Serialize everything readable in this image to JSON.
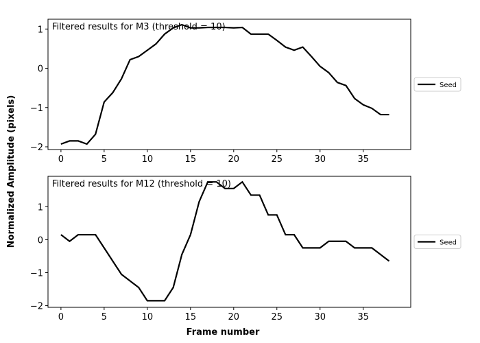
{
  "chart_data": {
    "type": "line",
    "xlabel": "Frame number",
    "ylabel": "Normalized Amplitude (pixels)",
    "xlim": [
      -1.5,
      40.5
    ],
    "xticks": [
      0,
      5,
      10,
      15,
      20,
      25,
      30,
      35
    ],
    "grid": false,
    "legend": "right",
    "line_color": "#000000",
    "panels": [
      {
        "title": "Filtered results for M3 (threshold = 10)",
        "ylim": [
          -2.07,
          1.25
        ],
        "yticks": [
          -2,
          -1,
          0,
          1
        ],
        "series": [
          {
            "name": "Seed",
            "x": [
              0,
              1,
              2,
              3,
              4,
              5,
              6,
              7,
              8,
              9,
              10,
              11,
              12,
              13,
              14,
              15,
              16,
              17,
              18,
              19,
              20,
              21,
              22,
              23,
              24,
              25,
              26,
              27,
              28,
              29,
              30,
              31,
              32,
              33,
              34,
              35,
              36,
              37,
              38
            ],
            "values": [
              -1.93,
              -1.85,
              -1.85,
              -1.93,
              -1.68,
              -0.86,
              -0.62,
              -0.27,
              0.22,
              0.3,
              0.46,
              0.62,
              0.87,
              1.03,
              1.11,
              1.03,
              1.03,
              1.04,
              1.04,
              1.04,
              1.03,
              1.04,
              0.87,
              0.87,
              0.87,
              0.71,
              0.54,
              0.46,
              0.54,
              0.3,
              0.05,
              -0.11,
              -0.36,
              -0.44,
              -0.77,
              -0.93,
              -1.02,
              -1.18,
              -1.18
            ]
          }
        ]
      },
      {
        "title": "Filtered results for M12 (threshold = 10)",
        "ylim": [
          -2.05,
          1.92
        ],
        "yticks": [
          -2,
          -1,
          0,
          1
        ],
        "series": [
          {
            "name": "Seed",
            "x": [
              0,
              1,
              2,
              3,
              4,
              5,
              6,
              7,
              8,
              9,
              10,
              11,
              12,
              13,
              14,
              15,
              16,
              17,
              18,
              19,
              20,
              21,
              22,
              23,
              24,
              25,
              26,
              27,
              28,
              29,
              30,
              31,
              32,
              33,
              34,
              35,
              36,
              37,
              38
            ],
            "values": [
              0.15,
              -0.05,
              0.15,
              0.15,
              0.15,
              -0.25,
              -0.65,
              -1.05,
              -1.25,
              -1.45,
              -1.85,
              -1.85,
              -1.85,
              -1.45,
              -0.45,
              0.15,
              1.15,
              1.75,
              1.75,
              1.55,
              1.55,
              1.75,
              1.35,
              1.35,
              0.75,
              0.75,
              0.15,
              0.15,
              -0.25,
              -0.25,
              -0.25,
              -0.05,
              -0.05,
              -0.05,
              -0.25,
              -0.25,
              -0.25,
              -0.45,
              -0.65
            ]
          }
        ]
      }
    ]
  }
}
